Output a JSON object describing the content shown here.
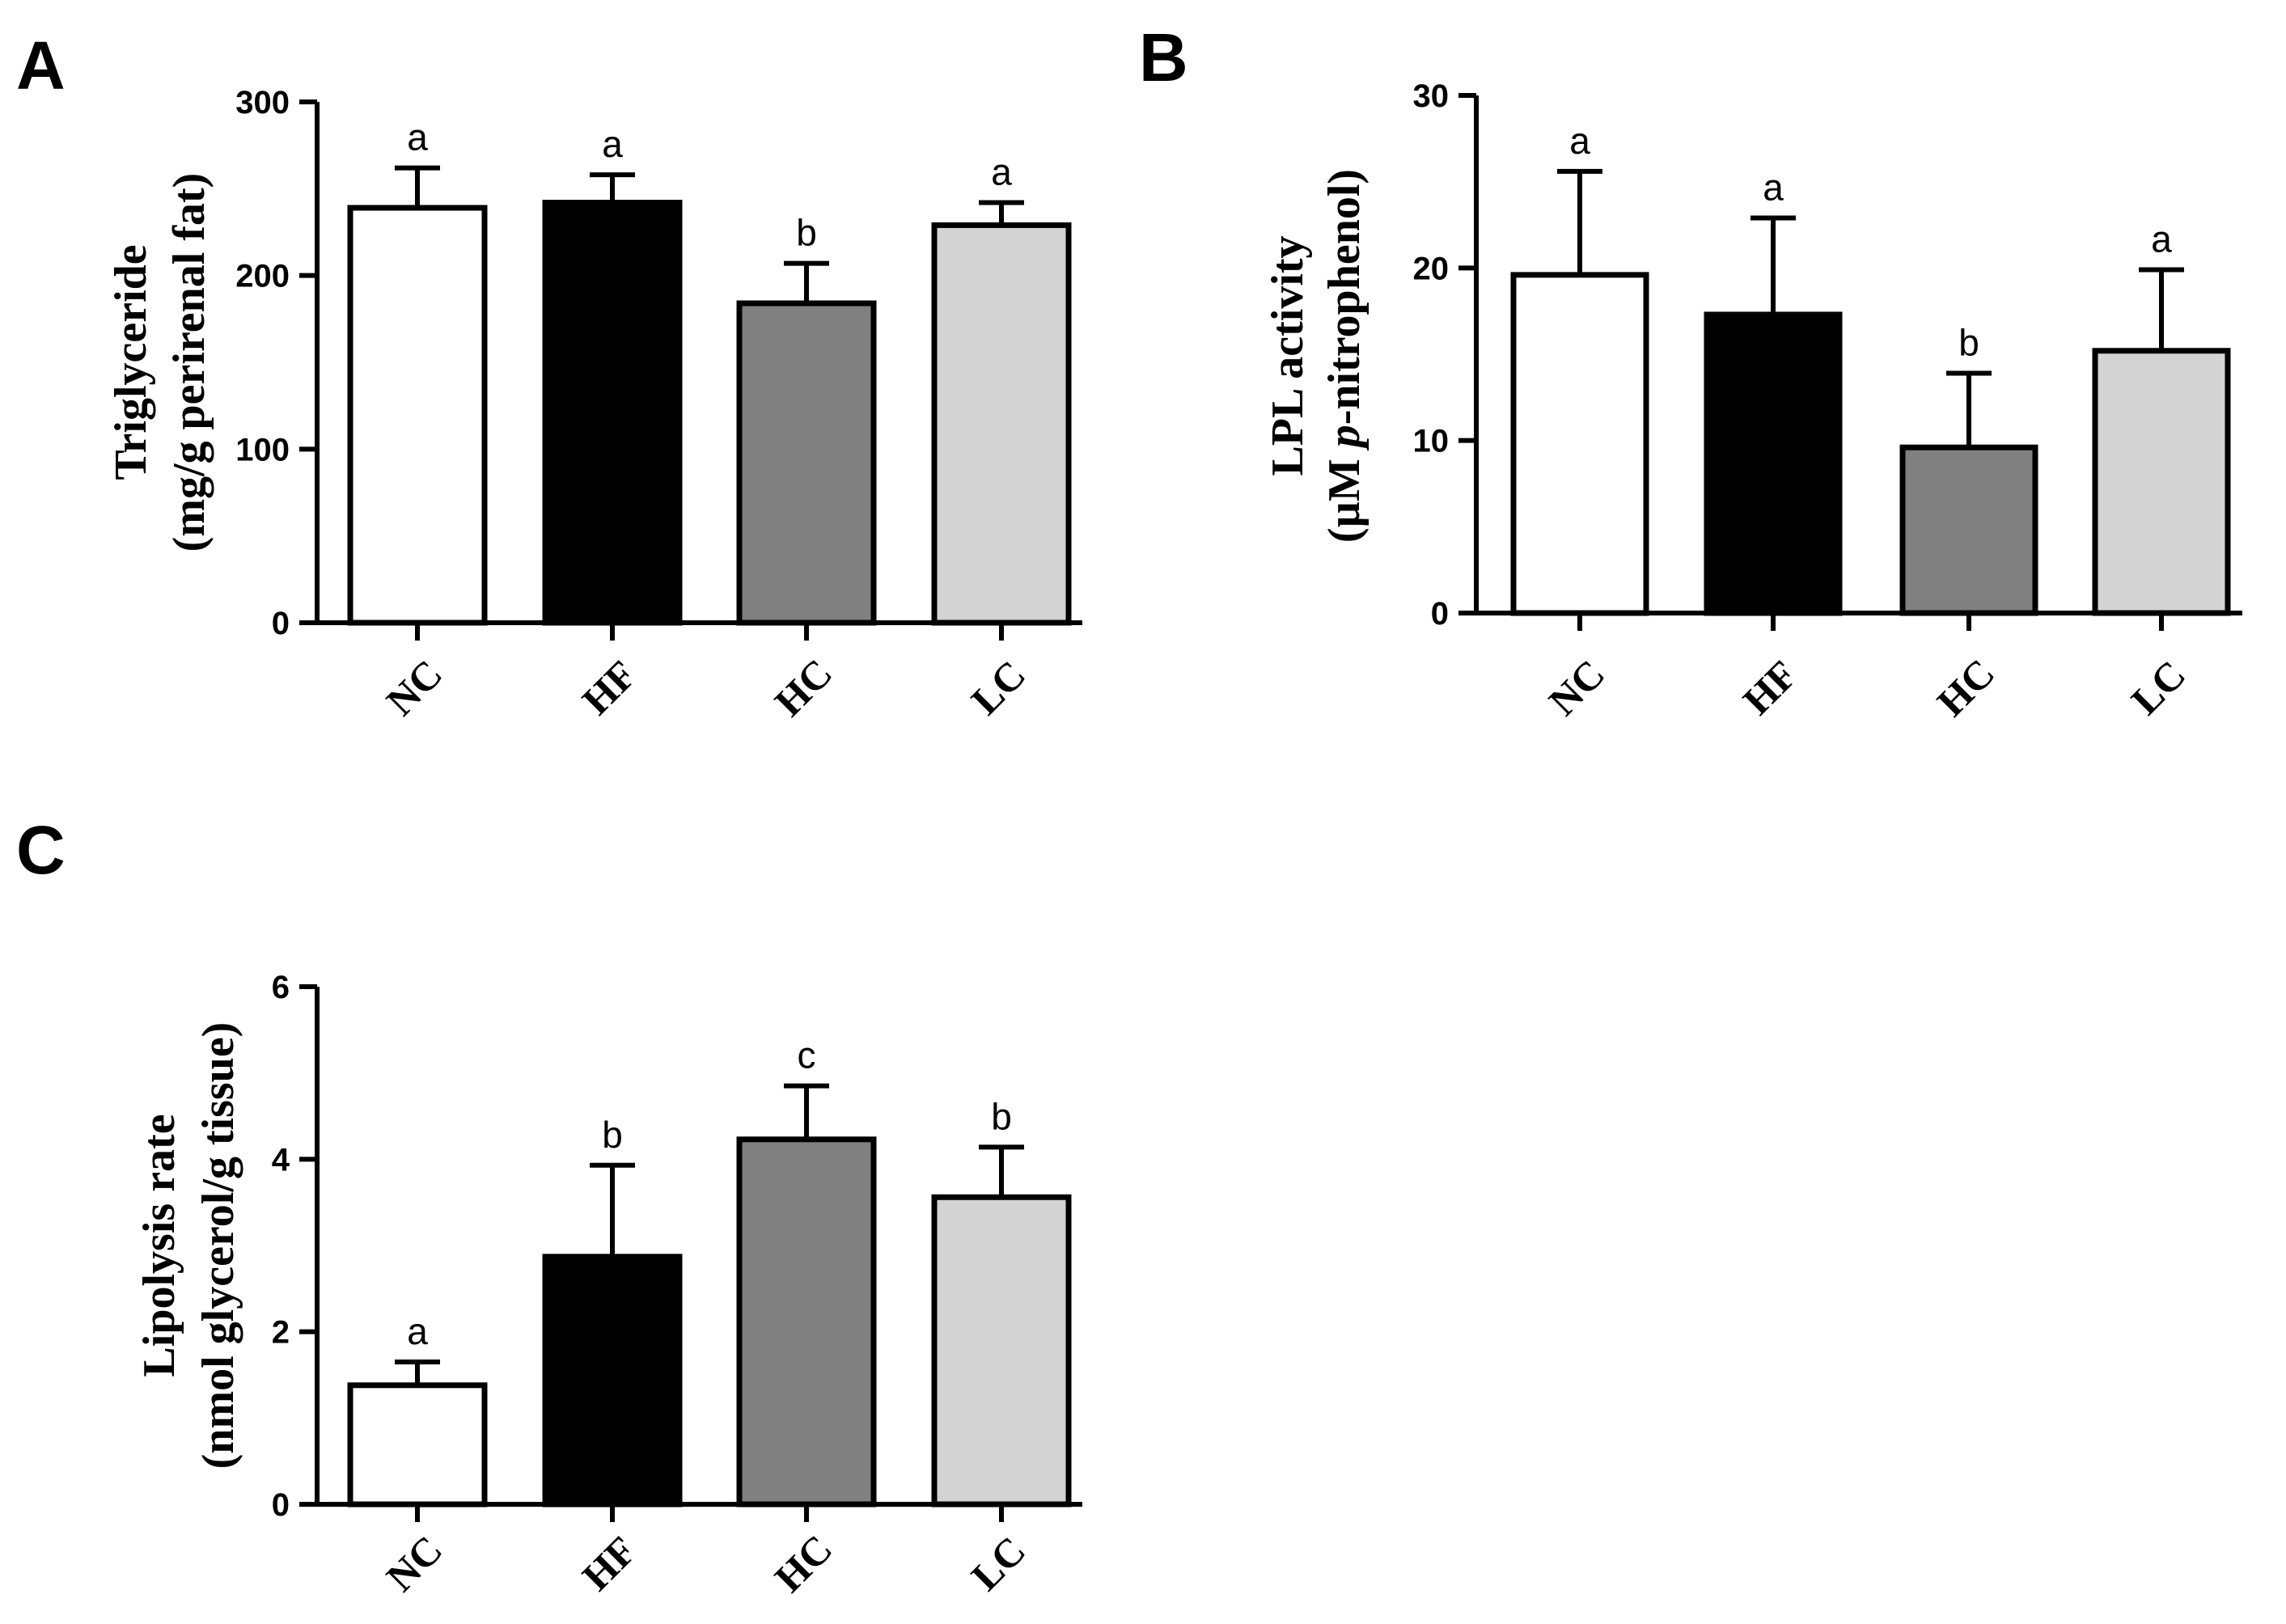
{
  "chart_data": [
    {
      "panel": "A",
      "type": "bar",
      "categories": [
        "NC",
        "HF",
        "HC",
        "LC"
      ],
      "values": [
        239,
        242,
        184,
        229
      ],
      "errors": [
        23,
        16,
        23,
        13
      ],
      "significance": [
        "a",
        "a",
        "b",
        "a"
      ],
      "ylabel_line1": "Triglyceride",
      "ylabel_line2": "(mg/g perirenal fat)",
      "ylim": [
        0,
        300
      ],
      "yticks": [
        0,
        100,
        200,
        300
      ],
      "colors": [
        "#ffffff",
        "#000000",
        "#808080",
        "#d3d3d3"
      ]
    },
    {
      "panel": "B",
      "type": "bar",
      "categories": [
        "NC",
        "HF",
        "HC",
        "LC"
      ],
      "values": [
        19.6,
        17.3,
        9.6,
        15.2
      ],
      "errors": [
        6.0,
        5.6,
        4.3,
        4.7
      ],
      "significance": [
        "a",
        "a",
        "b",
        "a"
      ],
      "ylabel_line1": "LPL activity",
      "ylabel_line2_pre": "(µM ",
      "ylabel_line2_italic": "p",
      "ylabel_line2_post": "-nitrophenol)",
      "ylim": [
        0,
        30
      ],
      "yticks": [
        0,
        10,
        20,
        30
      ],
      "colors": [
        "#ffffff",
        "#000000",
        "#808080",
        "#d3d3d3"
      ]
    },
    {
      "panel": "C",
      "type": "bar",
      "categories": [
        "NC",
        "HF",
        "HC",
        "LC"
      ],
      "values": [
        1.38,
        2.87,
        4.23,
        3.56
      ],
      "errors": [
        0.27,
        1.06,
        0.62,
        0.58
      ],
      "significance": [
        "a",
        "b",
        "c",
        "b"
      ],
      "ylabel_line1": "Lipolysis rate",
      "ylabel_line2": "(nmol glycerol/g tissue)",
      "ylim": [
        0,
        6
      ],
      "yticks": [
        0,
        2,
        4,
        6
      ],
      "colors": [
        "#ffffff",
        "#000000",
        "#808080",
        "#d3d3d3"
      ]
    }
  ]
}
